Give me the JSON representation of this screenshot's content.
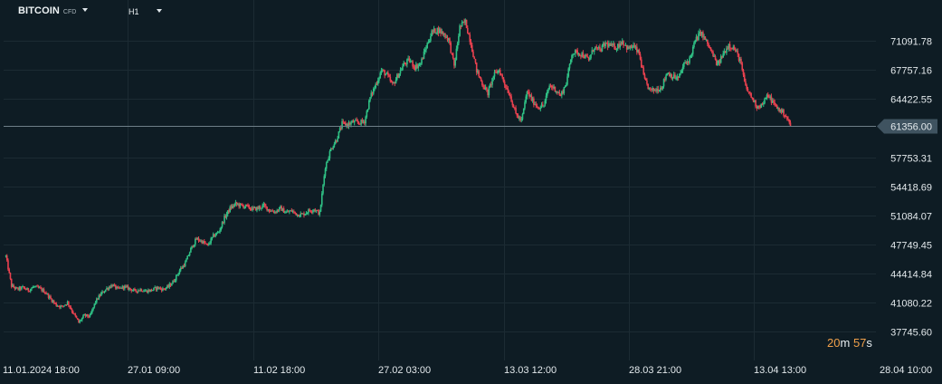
{
  "toolbar": {
    "symbol": "BITCOIN",
    "badge": "CFD",
    "timeframe": "H1",
    "dropdown_icon": "chevron-down-icon"
  },
  "countdown": {
    "minutes": "20",
    "min_unit": "m",
    "seconds": "57",
    "sec_unit": "s"
  },
  "colors": {
    "background": "#0e1c24",
    "grid": "#1c2b33",
    "up": "#2fbf84",
    "down": "#e8414f",
    "price_line": "#6e7f88",
    "price_label_bg": "#3f5360",
    "countdown_value": "#f0a04a"
  },
  "chart_data": {
    "type": "candlestick",
    "title": "",
    "xlabel": "",
    "ylabel": "",
    "ylim": [
      36500,
      74800
    ],
    "y_ticks": [
      71091.78,
      67757.16,
      64422.55,
      61356.0,
      57753.31,
      54418.69,
      51084.07,
      47749.45,
      44414.84,
      41080.22,
      37745.6
    ],
    "x_ticks": [
      "11.01.2024  18:00",
      "27.01  09:00",
      "11.02  18:00",
      "27.02  03:00",
      "13.03  12:00",
      "28.03  21:00",
      "13.04  13:00",
      "28.04  10:00"
    ],
    "current_price": 61356.0,
    "grid": true,
    "series": [
      {
        "values": [
          46400,
          43000,
          42600,
          42800,
          42500,
          42900,
          42700,
          42300,
          41500,
          40800,
          40600,
          41100,
          39900,
          38800,
          39600,
          39500,
          41200,
          42100,
          42700,
          43100,
          42600,
          42900,
          42700,
          42400,
          42600,
          42400,
          42500,
          42800,
          42600,
          42900,
          43600,
          44800,
          45600,
          47200,
          48400,
          48100,
          47600,
          48700,
          49200,
          50800,
          51900,
          52400,
          52200,
          52100,
          51800,
          51900,
          52200,
          51700,
          51500,
          51900,
          51400,
          51600,
          51200,
          51200,
          51600,
          51800,
          51300,
          56700,
          58700,
          59800,
          61600,
          61500,
          61800,
          61700,
          61900,
          64600,
          66100,
          67700,
          67200,
          66000,
          67200,
          68400,
          68900,
          68100,
          68500,
          70400,
          72100,
          72400,
          72000,
          71300,
          68200,
          72700,
          73300,
          70800,
          67700,
          66200,
          65100,
          67100,
          67800,
          66200,
          64800,
          62700,
          61900,
          65300,
          64200,
          63500,
          63700,
          66000,
          65600,
          64800,
          66300,
          69700,
          69800,
          69500,
          68900,
          70400,
          70000,
          70800,
          70500,
          70400,
          71100,
          70200,
          70500,
          69600,
          66500,
          65400,
          65500,
          65800,
          67500,
          67000,
          66800,
          68400,
          69000,
          71100,
          72100,
          71000,
          69700,
          68300,
          69600,
          70700,
          70200,
          68900,
          65800,
          64700,
          63600,
          63800,
          64900,
          63900,
          63200,
          62700,
          61400
        ]
      }
    ]
  }
}
